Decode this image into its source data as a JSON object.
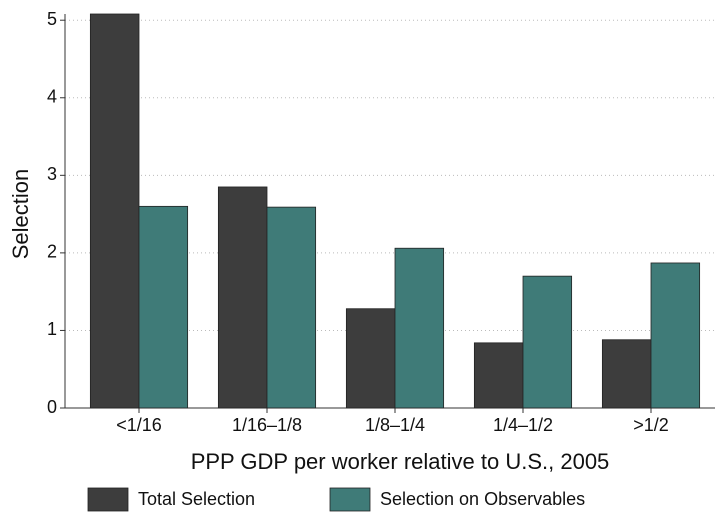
{
  "chart_data": {
    "type": "bar",
    "x_label": "PPP GDP per worker relative to U.S., 2005",
    "y_label": "Selection",
    "categories": [
      "<1/16",
      "1/16–1/8",
      "1/8–1/4",
      "1/4–1/2",
      ">1/2"
    ],
    "series": [
      {
        "name": "Total Selection",
        "color": "#3d3d3d",
        "values": [
          5.08,
          2.85,
          1.28,
          0.84,
          0.88
        ]
      },
      {
        "name": "Selection on Observables",
        "color": "#3f7b78",
        "values": [
          2.6,
          2.59,
          2.06,
          1.7,
          1.87
        ]
      }
    ],
    "ylim": [
      0,
      5.08
    ],
    "yticks": [
      0,
      1,
      2,
      3,
      4,
      5
    ],
    "grid": true,
    "legend": "bottom"
  }
}
